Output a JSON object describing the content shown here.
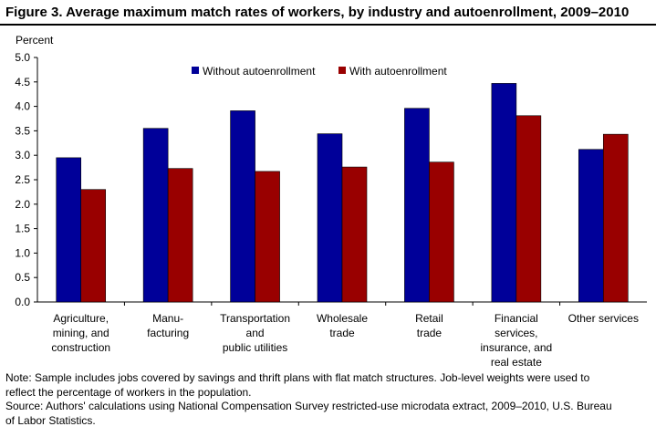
{
  "title": "Figure 3. Average maximum match rates of workers, by industry and autoenrollment,  2009–2010",
  "chart_data": {
    "type": "bar",
    "ylabel": "Percent",
    "ylim": [
      0,
      5
    ],
    "yticks": [
      "0.0",
      "0.5",
      "1.0",
      "1.5",
      "2.0",
      "2.5",
      "3.0",
      "3.5",
      "4.0",
      "4.5",
      "5.0"
    ],
    "grid": false,
    "legend_position": "top",
    "categories": [
      [
        "Agriculture,",
        "mining, and",
        "construction"
      ],
      [
        "Manu-",
        "facturing"
      ],
      [
        "Transportation",
        "and",
        "public utilities"
      ],
      [
        "Wholesale",
        "trade"
      ],
      [
        "Retail",
        "trade"
      ],
      [
        "Financial",
        "services,",
        "insurance, and",
        "real estate"
      ],
      [
        "Other services"
      ]
    ],
    "series": [
      {
        "name": "Without autoenrollment",
        "color": "#000099",
        "values": [
          2.95,
          3.55,
          3.91,
          3.44,
          3.96,
          4.47,
          3.12
        ]
      },
      {
        "name": "With autoenrollment",
        "color": "#990000",
        "values": [
          2.3,
          2.73,
          2.67,
          2.76,
          2.86,
          3.81,
          3.43
        ]
      }
    ]
  },
  "notes": {
    "note_line1": "Note: Sample includes jobs covered by savings and thrift plans with flat match structures. Job-level weights were used to",
    "note_line2": "reflect the percentage of workers in the population.",
    "source_line1": "Source: Authors' calculations using National Compensation Survey restricted-use microdata extract, 2009–2010, U.S. Bureau",
    "source_line2": "of Labor Statistics."
  }
}
